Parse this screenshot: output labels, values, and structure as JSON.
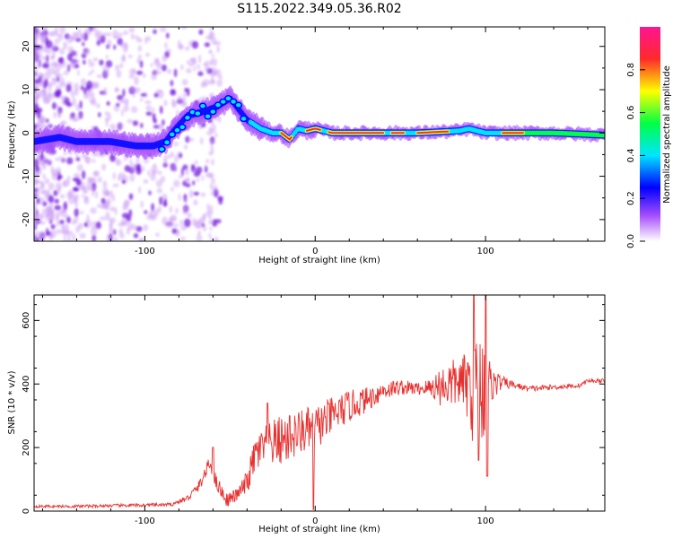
{
  "title": "S115.2022.349.05.36.R02",
  "chart_data": [
    {
      "type": "heatmap",
      "xlabel": "Height of straight line (km)",
      "ylabel": "Frequency (Hz)",
      "xlim": [
        -165,
        170
      ],
      "ylim": [
        -25,
        24.5
      ],
      "xticks": [
        -100,
        0,
        100
      ],
      "yticks": [
        -20,
        -10,
        0,
        10,
        20
      ],
      "colorbar": {
        "label": "Normalized spectral amplitude",
        "ticks": [
          0.0,
          0.2,
          0.4,
          0.6,
          0.8
        ],
        "range": [
          0,
          1
        ],
        "colors": [
          "#ffffff",
          "#a64dff",
          "#0000ff",
          "#00e5ff",
          "#00ff44",
          "#ffff00",
          "#ff2a2a",
          "#ff1493"
        ]
      },
      "ridge": {
        "x": [
          -165,
          -150,
          -140,
          -120,
          -105,
          -95,
          -88,
          -82,
          -75,
          -65,
          -58,
          -50,
          -44,
          -40,
          -36,
          -32,
          -25,
          -20,
          -15,
          -10,
          -5,
          0,
          10,
          30,
          60,
          85,
          90,
          100,
          115,
          140,
          170
        ],
        "y": [
          -2,
          -1,
          -2,
          -2,
          -3,
          -3,
          -2,
          1,
          4,
          5,
          6,
          8,
          5,
          3,
          2,
          1,
          0,
          0,
          -1.5,
          1,
          0.5,
          1,
          0,
          0,
          0,
          0.5,
          1,
          0,
          0,
          0,
          -0.5
        ]
      }
    },
    {
      "type": "line",
      "xlabel": "Height of straight line (km)",
      "ylabel": "SNR (10 * v/v)",
      "xlim": [
        -165,
        170
      ],
      "ylim": [
        0,
        680
      ],
      "xticks": [
        -100,
        0,
        100
      ],
      "yticks": [
        0,
        200,
        400,
        600
      ],
      "series": [
        {
          "color": "#e8312f",
          "envelope_x": [
            -165,
            -140,
            -110,
            -85,
            -75,
            -68,
            -62,
            -58,
            -52,
            -46,
            -40,
            -35,
            -30,
            -22,
            -15,
            -8,
            0,
            10,
            20,
            30,
            40,
            50,
            60,
            70,
            75,
            80,
            85,
            90,
            93,
            96,
            100,
            103,
            110,
            118,
            125,
            140,
            155,
            160,
            170
          ],
          "envelope_y": [
            15,
            15,
            18,
            20,
            40,
            80,
            150,
            90,
            35,
            50,
            90,
            180,
            200,
            220,
            230,
            250,
            260,
            300,
            330,
            350,
            380,
            390,
            385,
            390,
            395,
            400,
            405,
            400,
            380,
            380,
            395,
            400,
            405,
            395,
            385,
            390,
            395,
            410,
            410
          ],
          "noise_x": [
            -165,
            -80,
            -60,
            -45,
            -35,
            -20,
            0,
            20,
            40,
            60,
            68,
            72,
            80,
            85,
            90,
            93,
            96,
            100,
            103,
            110,
            118,
            170
          ],
          "noise_y": [
            4,
            6,
            25,
            20,
            60,
            80,
            70,
            50,
            30,
            20,
            30,
            60,
            80,
            70,
            120,
            180,
            200,
            180,
            60,
            20,
            10,
            6
          ],
          "spikes": [
            {
              "x": -60,
              "y": 200
            },
            {
              "x": -28,
              "y": 340
            },
            {
              "x": -15,
              "y": 300
            },
            {
              "x": -1,
              "y": 5
            },
            {
              "x": 93,
              "y": 680
            },
            {
              "x": 96,
              "y": 160
            },
            {
              "x": 100,
              "y": 680
            },
            {
              "x": 101,
              "y": 110
            }
          ]
        }
      ]
    }
  ]
}
